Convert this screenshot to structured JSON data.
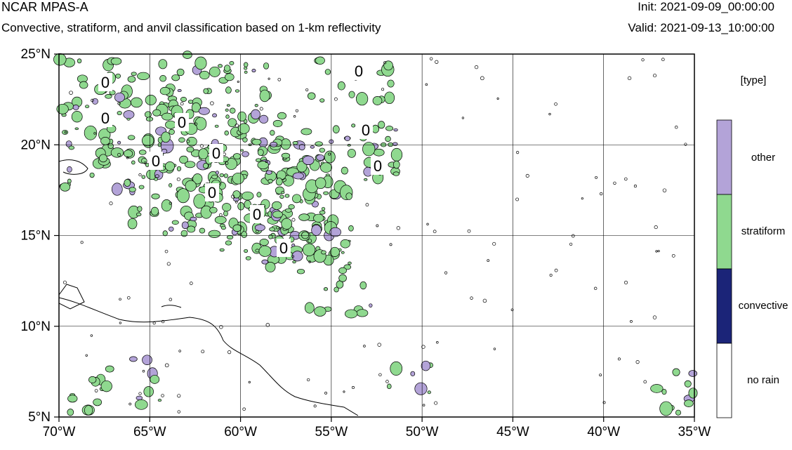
{
  "header": {
    "title": "NCAR MPAS-A",
    "subtitle": "Convective, stratiform, and anvil classification based on 1-km reflectivity",
    "init": "Init: 2021-09-09_00:00:00",
    "valid": "Valid: 2021-09-13_10:00:00"
  },
  "map": {
    "lon_range": [
      -70,
      -35
    ],
    "lat_range": [
      5,
      25
    ],
    "lon_ticks": [
      "70°W",
      "65°W",
      "60°W",
      "55°W",
      "50°W",
      "45°W",
      "40°W",
      "35°W"
    ],
    "lat_ticks": [
      "25°N",
      "20°N",
      "15°N",
      "10°N",
      "5°N"
    ],
    "grid": true,
    "contour_label": "0"
  },
  "legend": {
    "title": "[type]",
    "items": [
      {
        "label": "other",
        "color": "#b3a3d8"
      },
      {
        "label": "stratiform",
        "color": "#8fd98f"
      },
      {
        "label": "convective",
        "color": "#1b2478"
      },
      {
        "label": "no rain",
        "color": "#ffffff"
      }
    ]
  }
}
